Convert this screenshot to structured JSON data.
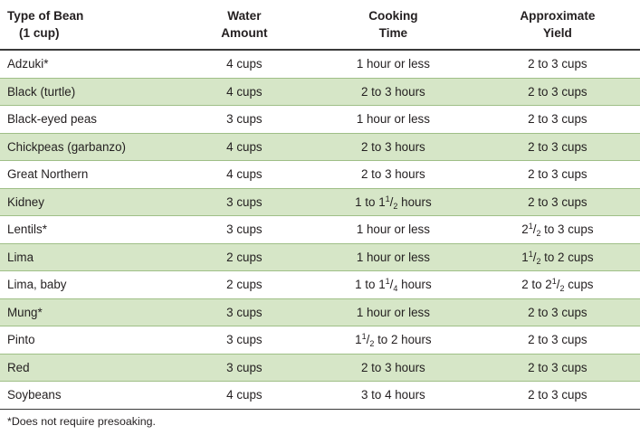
{
  "table": {
    "headers": [
      {
        "line1": "Type of Bean",
        "line2": "(1 cup)"
      },
      {
        "line1": "Water",
        "line2": "Amount"
      },
      {
        "line1": "Cooking",
        "line2": "Time"
      },
      {
        "line1": "Approximate",
        "line2": "Yield"
      }
    ],
    "rows": [
      {
        "bean": "Adzuki*",
        "water": "4 cups",
        "time": "1 hour or less",
        "yield": "2 to 3 cups",
        "shaded": false
      },
      {
        "bean": "Black (turtle)",
        "water": "4 cups",
        "time": "2 to 3 hours",
        "yield": "2 to 3 cups",
        "shaded": true
      },
      {
        "bean": "Black-eyed peas",
        "water": "3 cups",
        "time": "1 hour or less",
        "yield": "2 to 3 cups",
        "shaded": false
      },
      {
        "bean": "Chickpeas (garbanzo)",
        "water": "4 cups",
        "time": "2 to 3 hours",
        "yield": "2 to 3 cups",
        "shaded": true
      },
      {
        "bean": "Great Northern",
        "water": "4 cups",
        "time": "2 to 3 hours",
        "yield": "2 to 3 cups",
        "shaded": false
      },
      {
        "bean": "Kidney",
        "water": "3 cups",
        "time": "1 to 1½ hours",
        "yield": "2 to 3 cups",
        "shaded": true
      },
      {
        "bean": "Lentils*",
        "water": "3 cups",
        "time": "1 hour or less",
        "yield": "2½ to 3 cups",
        "shaded": false
      },
      {
        "bean": "Lima",
        "water": "2 cups",
        "time": "1 hour or less",
        "yield": "1½ to 2 cups",
        "shaded": true
      },
      {
        "bean": "Lima, baby",
        "water": "2 cups",
        "time": "1 to 1¼ hours",
        "yield": "2 to 2½ cups",
        "shaded": false
      },
      {
        "bean": "Mung*",
        "water": "3 cups",
        "time": "1 hour or less",
        "yield": "2 to 3 cups",
        "shaded": true
      },
      {
        "bean": "Pinto",
        "water": "3 cups",
        "time": "1½ to 2 hours",
        "yield": "2 to 3 cups",
        "shaded": false
      },
      {
        "bean": "Red",
        "water": "3 cups",
        "time": "2 to 3 hours",
        "yield": "2 to 3 cups",
        "shaded": true
      },
      {
        "bean": "Soybeans",
        "water": "4 cups",
        "time": "3 to 4 hours",
        "yield": "2 to 3 cups",
        "shaded": false
      }
    ],
    "shade_color": "#d6e6c7",
    "rule_color": "#9fbf87"
  },
  "footnote": "*Does not require presoaking."
}
